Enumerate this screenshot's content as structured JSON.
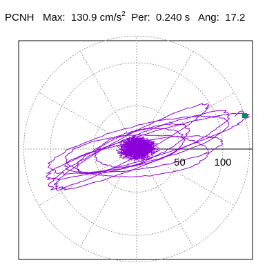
{
  "header": {
    "station": "PCNH",
    "max_label": "Max:",
    "max_value": "130.9",
    "max_unit": "cm/s",
    "max_unit_exp": "2",
    "period_label": "Per:",
    "period_value": "0.240 s",
    "angle_label": "Ang:",
    "angle_value": "17.2"
  },
  "chart_data": {
    "type": "polar",
    "title": "PCNH Max: 130.9 cm/s2 Per: 0.240 s Ang: 17.2",
    "radial_ticks": [
      50,
      100
    ],
    "radial_tick_labels": [
      "50",
      "100"
    ],
    "radial_max": 130.9,
    "max_direction_deg": 17.2,
    "spoke_angles_deg": [
      0,
      30,
      60,
      90,
      120,
      150,
      180,
      210,
      240,
      270,
      300,
      330
    ],
    "grid": "dotted",
    "colors": {
      "trace": "#8b00d8",
      "marker": "#008c5a",
      "grid": "#9a9a9a",
      "axis": "#000000"
    },
    "orbits": [
      {
        "a": 128,
        "b": 14,
        "tilt_deg": 17,
        "dx": 15,
        "dy": -4
      },
      {
        "a": 118,
        "b": 18,
        "tilt_deg": 22,
        "dx": 4,
        "dy": 2
      },
      {
        "a": 112,
        "b": 22,
        "tilt_deg": 14,
        "dx": 3,
        "dy": -6
      },
      {
        "a": 105,
        "b": 13,
        "tilt_deg": 28,
        "dx": -8,
        "dy": -4
      },
      {
        "a": 96,
        "b": 16,
        "tilt_deg": 9,
        "dx": 10,
        "dy": 8
      },
      {
        "a": 86,
        "b": 24,
        "tilt_deg": 3,
        "dx": 0,
        "dy": 10
      },
      {
        "a": 72,
        "b": 18,
        "tilt_deg": 20,
        "dx": -6,
        "dy": 0
      },
      {
        "a": 55,
        "b": 20,
        "tilt_deg": 12,
        "dx": 4,
        "dy": -2
      }
    ],
    "core_extent": 28
  }
}
